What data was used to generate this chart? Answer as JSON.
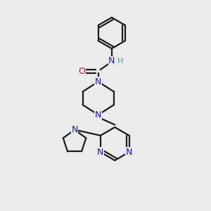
{
  "bg_color": "#ebebeb",
  "bond_color": "#1a1a1a",
  "N_color": "#1515cc",
  "O_color": "#cc1515",
  "H_color": "#4a9a8a",
  "line_width": 1.6,
  "figsize": [
    3.0,
    3.0
  ],
  "dpi": 100,
  "xlim": [
    0,
    10
  ],
  "ylim": [
    0,
    10
  ]
}
